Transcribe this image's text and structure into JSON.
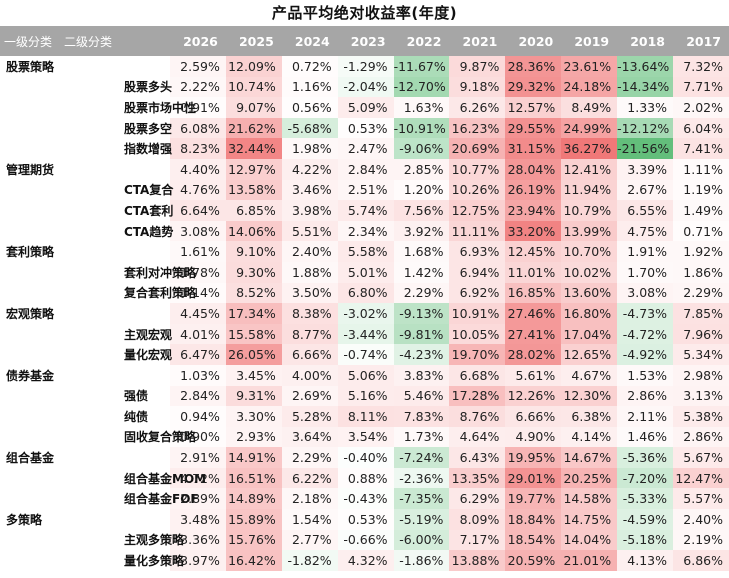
{
  "title": "产品平均绝对收益率(年度)",
  "header": {
    "level1": "一级分类",
    "level2": "二级分类",
    "years": [
      "2026",
      "2025",
      "2024",
      "2023",
      "2022",
      "2021",
      "2020",
      "2019",
      "2018",
      "2017"
    ]
  },
  "colors": {
    "header_bg": "#a6a6a6",
    "positive_max": "#f07878",
    "negative_max": "#63be7b",
    "neutral": "#ffffff"
  },
  "chart_data": {
    "type": "heatmap",
    "title": "产品平均绝对收益率(年度)",
    "columns": [
      "2026",
      "2025",
      "2024",
      "2023",
      "2022",
      "2021",
      "2020",
      "2019",
      "2018",
      "2017"
    ],
    "rows": [
      {
        "level1": "股票策略",
        "level2": "",
        "values": [
          2.59,
          12.09,
          0.72,
          -1.29,
          -11.67,
          9.87,
          28.36,
          23.61,
          -13.64,
          7.32
        ]
      },
      {
        "level1": "",
        "level2": "股票多头",
        "values": [
          2.22,
          10.74,
          1.16,
          -2.04,
          -12.7,
          9.18,
          29.32,
          24.18,
          -14.34,
          7.71
        ]
      },
      {
        "level1": "",
        "level2": "股票市场中性",
        "values": [
          0.91,
          9.07,
          0.56,
          5.09,
          1.63,
          6.26,
          12.57,
          8.49,
          1.33,
          2.02
        ]
      },
      {
        "level1": "",
        "level2": "股票多空",
        "values": [
          6.08,
          21.62,
          -5.68,
          0.53,
          -10.91,
          16.23,
          29.55,
          24.99,
          -12.12,
          6.04
        ]
      },
      {
        "level1": "",
        "level2": "指数增强",
        "values": [
          8.23,
          32.44,
          1.98,
          2.47,
          -9.06,
          20.69,
          31.15,
          36.27,
          -21.56,
          7.41
        ]
      },
      {
        "level1": "管理期货",
        "level2": "",
        "values": [
          4.4,
          12.97,
          4.22,
          2.84,
          2.85,
          10.77,
          28.04,
          12.41,
          3.39,
          1.11
        ]
      },
      {
        "level1": "",
        "level2": "CTA复合",
        "values": [
          4.76,
          13.58,
          3.46,
          2.51,
          1.2,
          10.26,
          26.19,
          11.94,
          2.67,
          1.19
        ]
      },
      {
        "level1": "",
        "level2": "CTA套利",
        "values": [
          6.64,
          6.85,
          3.98,
          5.74,
          7.56,
          12.75,
          23.94,
          10.79,
          6.55,
          1.49
        ]
      },
      {
        "level1": "",
        "level2": "CTA趋势",
        "values": [
          3.08,
          14.06,
          5.51,
          2.34,
          3.92,
          11.11,
          33.2,
          13.99,
          4.75,
          0.71
        ]
      },
      {
        "level1": "套利策略",
        "level2": "",
        "values": [
          1.61,
          9.1,
          2.4,
          5.58,
          1.68,
          6.93,
          12.45,
          10.7,
          1.91,
          1.92
        ]
      },
      {
        "level1": "",
        "level2": "套利对冲策略",
        "values": [
          1.78,
          9.3,
          1.88,
          5.01,
          1.42,
          6.94,
          11.01,
          10.02,
          1.7,
          1.86
        ]
      },
      {
        "level1": "",
        "level2": "复合套利策略",
        "values": [
          1.14,
          8.52,
          3.5,
          6.8,
          2.29,
          6.92,
          16.85,
          13.6,
          3.08,
          2.29
        ]
      },
      {
        "level1": "宏观策略",
        "level2": "",
        "values": [
          4.45,
          17.34,
          8.38,
          -3.02,
          -9.13,
          10.91,
          27.46,
          16.8,
          -4.73,
          7.85
        ]
      },
      {
        "level1": "",
        "level2": "主观宏观",
        "values": [
          4.01,
          15.58,
          8.77,
          -3.44,
          -9.81,
          10.05,
          27.41,
          17.04,
          -4.72,
          7.96
        ]
      },
      {
        "level1": "",
        "level2": "量化宏观",
        "values": [
          6.47,
          26.05,
          6.66,
          -0.74,
          -4.23,
          19.7,
          28.02,
          12.65,
          -4.92,
          5.34
        ]
      },
      {
        "level1": "债券基金",
        "level2": "",
        "values": [
          1.03,
          3.45,
          4.0,
          5.06,
          3.83,
          6.68,
          5.61,
          4.67,
          1.53,
          2.98
        ]
      },
      {
        "level1": "",
        "level2": "强债",
        "values": [
          2.84,
          9.31,
          2.69,
          5.16,
          5.46,
          17.28,
          12.26,
          12.3,
          2.86,
          3.13
        ]
      },
      {
        "level1": "",
        "level2": "纯债",
        "values": [
          0.94,
          3.3,
          5.28,
          8.11,
          7.83,
          8.76,
          6.66,
          6.38,
          2.11,
          5.38
        ]
      },
      {
        "level1": "",
        "level2": "固收复合策略",
        "values": [
          0.9,
          2.93,
          3.64,
          3.54,
          1.73,
          4.64,
          4.9,
          4.14,
          1.46,
          2.86
        ]
      },
      {
        "level1": "组合基金",
        "level2": "",
        "values": [
          2.91,
          14.91,
          2.29,
          -0.4,
          -7.24,
          6.43,
          19.95,
          14.67,
          -5.36,
          5.67
        ]
      },
      {
        "level1": "",
        "level2": "组合基金MOM",
        "values": [
          4.72,
          16.51,
          6.22,
          0.88,
          -2.36,
          13.35,
          29.01,
          20.25,
          -7.2,
          12.47
        ]
      },
      {
        "level1": "",
        "level2": "组合基金FOF",
        "values": [
          2.89,
          14.89,
          2.18,
          -0.43,
          -7.35,
          6.29,
          19.77,
          14.58,
          -5.33,
          5.57
        ]
      },
      {
        "level1": "多策略",
        "level2": "",
        "values": [
          3.48,
          15.89,
          1.54,
          0.53,
          -5.19,
          8.09,
          18.84,
          14.75,
          -4.59,
          2.4
        ]
      },
      {
        "level1": "",
        "level2": "主观多策略",
        "values": [
          3.36,
          15.76,
          2.77,
          -0.66,
          -6.0,
          7.17,
          18.54,
          14.04,
          -5.18,
          2.19
        ]
      },
      {
        "level1": "",
        "level2": "量化多策略",
        "values": [
          3.97,
          16.42,
          -1.82,
          4.32,
          -1.86,
          13.88,
          20.59,
          21.01,
          4.13,
          6.86
        ]
      }
    ],
    "unit": "%",
    "color_scale": {
      "negative": "#63be7b",
      "zero": "#ffffff",
      "positive": "#f07878"
    }
  }
}
